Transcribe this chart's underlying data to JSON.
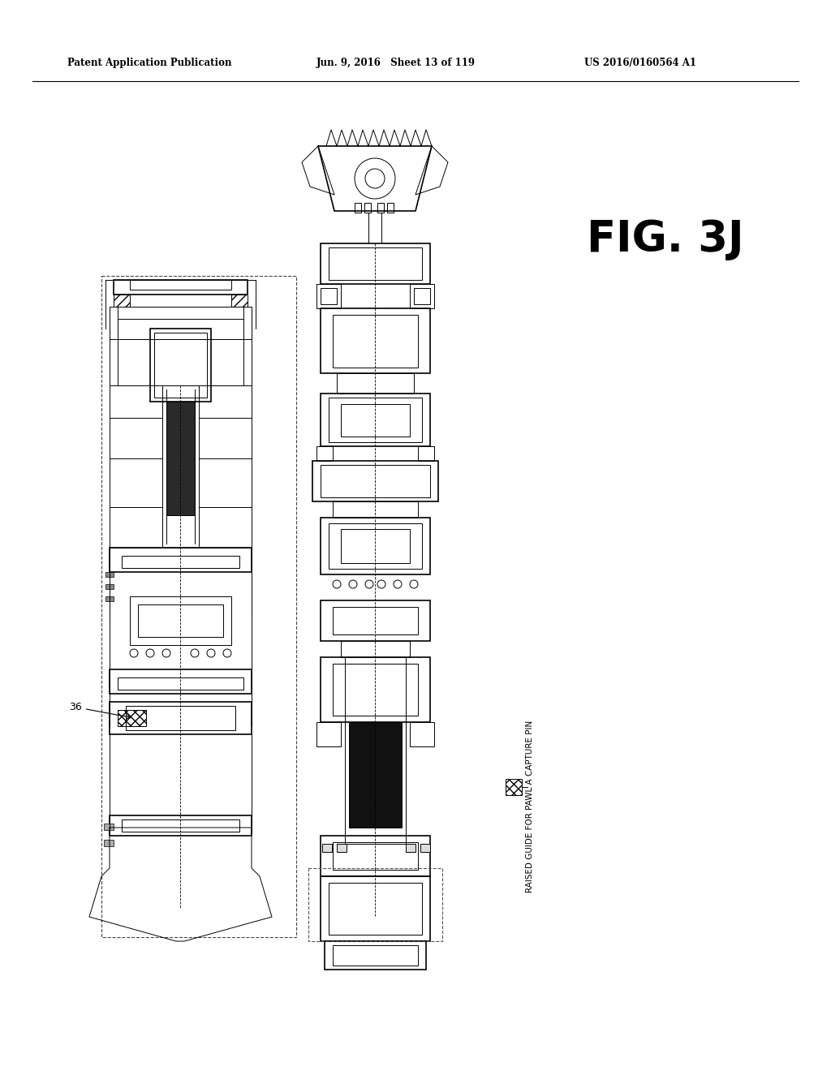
{
  "title_left": "Patent Application Publication",
  "title_center": "Jun. 9, 2016   Sheet 13 of 119",
  "title_right": "US 2016/0160564 A1",
  "fig_label": "FIG. 3J",
  "label_36": "36",
  "legend_text": "RAISED GUIDE FOR PAWL A CAPTURE PIN",
  "background_color": "#ffffff",
  "line_color": "#000000",
  "header_font_size": 9,
  "fig_label_font_size": 36
}
